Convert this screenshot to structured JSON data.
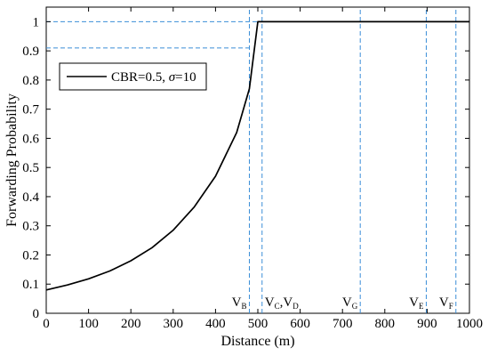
{
  "chart_data": {
    "type": "line",
    "xlabel": "Distance (m)",
    "ylabel": "Forwarding Probability",
    "xlim": [
      0,
      1000
    ],
    "ylim": [
      0,
      1.05
    ],
    "xticks": [
      "0",
      "100",
      "200",
      "300",
      "400",
      "500",
      "600",
      "700",
      "800",
      "900",
      "1000"
    ],
    "yticks": [
      "0",
      "0.1",
      "0.2",
      "0.3",
      "0.4",
      "0.5",
      "0.6",
      "0.7",
      "0.8",
      "0.9",
      "1"
    ],
    "legend": {
      "location": "top-left",
      "label_prefix": "CBR=0.5, ",
      "label_sigma": "σ",
      "label_suffix": "=10"
    },
    "series": [
      {
        "name": "CBR=0.5, σ=10",
        "color": "#000000",
        "x": [
          0,
          50,
          100,
          150,
          200,
          250,
          300,
          350,
          400,
          450,
          480,
          500,
          550,
          600,
          650,
          700,
          750,
          800,
          850,
          900,
          950,
          1000
        ],
        "y": [
          0.08,
          0.097,
          0.118,
          0.145,
          0.18,
          0.225,
          0.285,
          0.365,
          0.47,
          0.62,
          0.77,
          1.0,
          1.0,
          1.0,
          1.0,
          1.0,
          1.0,
          1.0,
          1.0,
          1.0,
          1.0,
          1.0
        ]
      }
    ],
    "reference_color": "#3b8ed8",
    "vehicles": [
      {
        "label": "V",
        "sub": "B",
        "x": 480
      },
      {
        "label": "V",
        "sub": "C",
        "label2": ",V",
        "sub2": "D",
        "x": 510
      },
      {
        "label": "V",
        "sub": "G",
        "x": 742
      },
      {
        "label": "V",
        "sub": "E",
        "x": 898
      },
      {
        "label": "V",
        "sub": "F",
        "x": 968
      }
    ],
    "h_reference": [
      {
        "y": 1.0,
        "x_end": 500
      },
      {
        "y": 0.91,
        "x_end": 480
      }
    ]
  }
}
